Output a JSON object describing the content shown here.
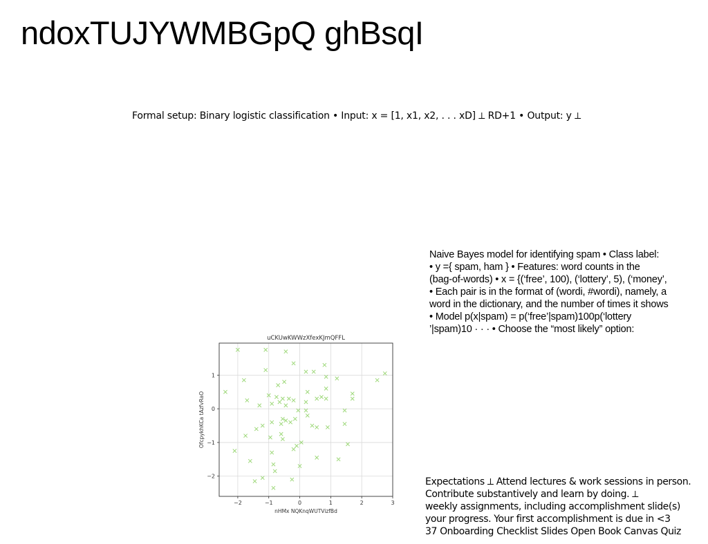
{
  "page": {
    "title": "ndoxTUJYWMBGpQ ghBsqI"
  },
  "setup_line": "Formal setup: Binary logistic classification • Input: x = [1, x1, x2, . . . xD] ⟂ RD+1 • Output: y ⟂",
  "naive_bayes": {
    "lines": [
      "Naive Bayes model for identifying spam • Class label:",
      "• y ={ spam, ham } • Features: word counts in the",
      "(bag-of-words) • x = {(‘free’, 100), (‘lottery’, 5), (‘money’,",
      "• Each pair is in the format of (wordi, #wordi), namely, a",
      "word in the dictionary, and the number of times it shows",
      "• Model p(x|spam) = p(‘free’|spam)100p(‘lottery",
      "’|spam)10 · · · • Choose the “most likely” option:"
    ]
  },
  "expectations": {
    "lines": [
      "Expectations ⟂ Attend lectures & work sessions in person.",
      "Contribute substantively and learn by doing. ⟂",
      "weekly assignments, including accomplishment slide(s)",
      "your progress. Your first accomplishment is due in <3",
      "37 Onboarding Checklist Slides Open Book Canvas Quiz"
    ]
  },
  "chart_data": {
    "type": "scatter",
    "title": "uCKUwKWWzXfexKJmQFFL",
    "xlabel": "nHMx NQKnqWUTVizfBd",
    "ylabel": "OfcpykhKCa tAzfvRaO",
    "xlim": [
      -2.6,
      3.0
    ],
    "ylim": [
      -2.6,
      1.95
    ],
    "xticks": [
      -2,
      -1,
      0,
      1,
      2,
      3
    ],
    "yticks": [
      1,
      0,
      -1,
      -2
    ],
    "xtick_labels": [
      "−2",
      "−1",
      "0",
      "1",
      "2",
      "3"
    ],
    "ytick_labels": [
      "1",
      "0",
      "−1",
      "−2"
    ],
    "grid": true,
    "marker": "x",
    "color": "#9ed87a",
    "points": [
      [
        -2.0,
        1.75
      ],
      [
        -1.1,
        1.75
      ],
      [
        -0.45,
        1.7
      ],
      [
        -0.2,
        1.35
      ],
      [
        0.8,
        1.3
      ],
      [
        -1.1,
        1.15
      ],
      [
        0.2,
        1.1
      ],
      [
        0.45,
        1.1
      ],
      [
        1.2,
        0.9
      ],
      [
        2.5,
        0.85
      ],
      [
        2.75,
        1.05
      ],
      [
        -1.8,
        0.85
      ],
      [
        -0.7,
        0.7
      ],
      [
        -0.5,
        0.8
      ],
      [
        0.85,
        0.95
      ],
      [
        -2.4,
        0.5
      ],
      [
        0.25,
        0.5
      ],
      [
        0.85,
        0.6
      ],
      [
        1.7,
        0.45
      ],
      [
        -1.0,
        0.4
      ],
      [
        -0.75,
        0.35
      ],
      [
        -0.55,
        0.3
      ],
      [
        -0.35,
        0.3
      ],
      [
        -0.2,
        0.25
      ],
      [
        0.55,
        0.3
      ],
      [
        0.7,
        0.35
      ],
      [
        0.85,
        0.3
      ],
      [
        1.7,
        0.3
      ],
      [
        -1.7,
        0.25
      ],
      [
        -0.65,
        0.2
      ],
      [
        -0.9,
        0.15
      ],
      [
        -0.45,
        0.1
      ],
      [
        0.2,
        0.2
      ],
      [
        -1.3,
        0.1
      ],
      [
        -0.05,
        -0.05
      ],
      [
        0.2,
        -0.05
      ],
      [
        1.45,
        -0.05
      ],
      [
        0.25,
        -0.2
      ],
      [
        -0.55,
        -0.3
      ],
      [
        -0.9,
        -0.4
      ],
      [
        -0.6,
        -0.45
      ],
      [
        -0.45,
        -0.35
      ],
      [
        -0.3,
        -0.4
      ],
      [
        -0.15,
        -0.3
      ],
      [
        -1.2,
        -0.5
      ],
      [
        0.4,
        -0.5
      ],
      [
        0.55,
        -0.55
      ],
      [
        0.9,
        -0.55
      ],
      [
        1.45,
        -0.45
      ],
      [
        -1.4,
        -0.6
      ],
      [
        -1.75,
        -0.8
      ],
      [
        -0.6,
        -0.75
      ],
      [
        -0.55,
        -0.9
      ],
      [
        -0.95,
        -0.85
      ],
      [
        -0.1,
        -1.1
      ],
      [
        0.05,
        -1.0
      ],
      [
        1.55,
        -1.05
      ],
      [
        -0.2,
        -1.2
      ],
      [
        -2.1,
        -1.25
      ],
      [
        -0.9,
        -1.3
      ],
      [
        0.0,
        -1.7
      ],
      [
        0.55,
        -1.45
      ],
      [
        1.25,
        -1.5
      ],
      [
        -1.6,
        -1.55
      ],
      [
        -0.85,
        -1.65
      ],
      [
        -0.8,
        -1.85
      ],
      [
        -1.2,
        -2.05
      ],
      [
        -0.25,
        -2.1
      ],
      [
        -1.45,
        -2.15
      ],
      [
        -0.85,
        -2.35
      ]
    ]
  }
}
